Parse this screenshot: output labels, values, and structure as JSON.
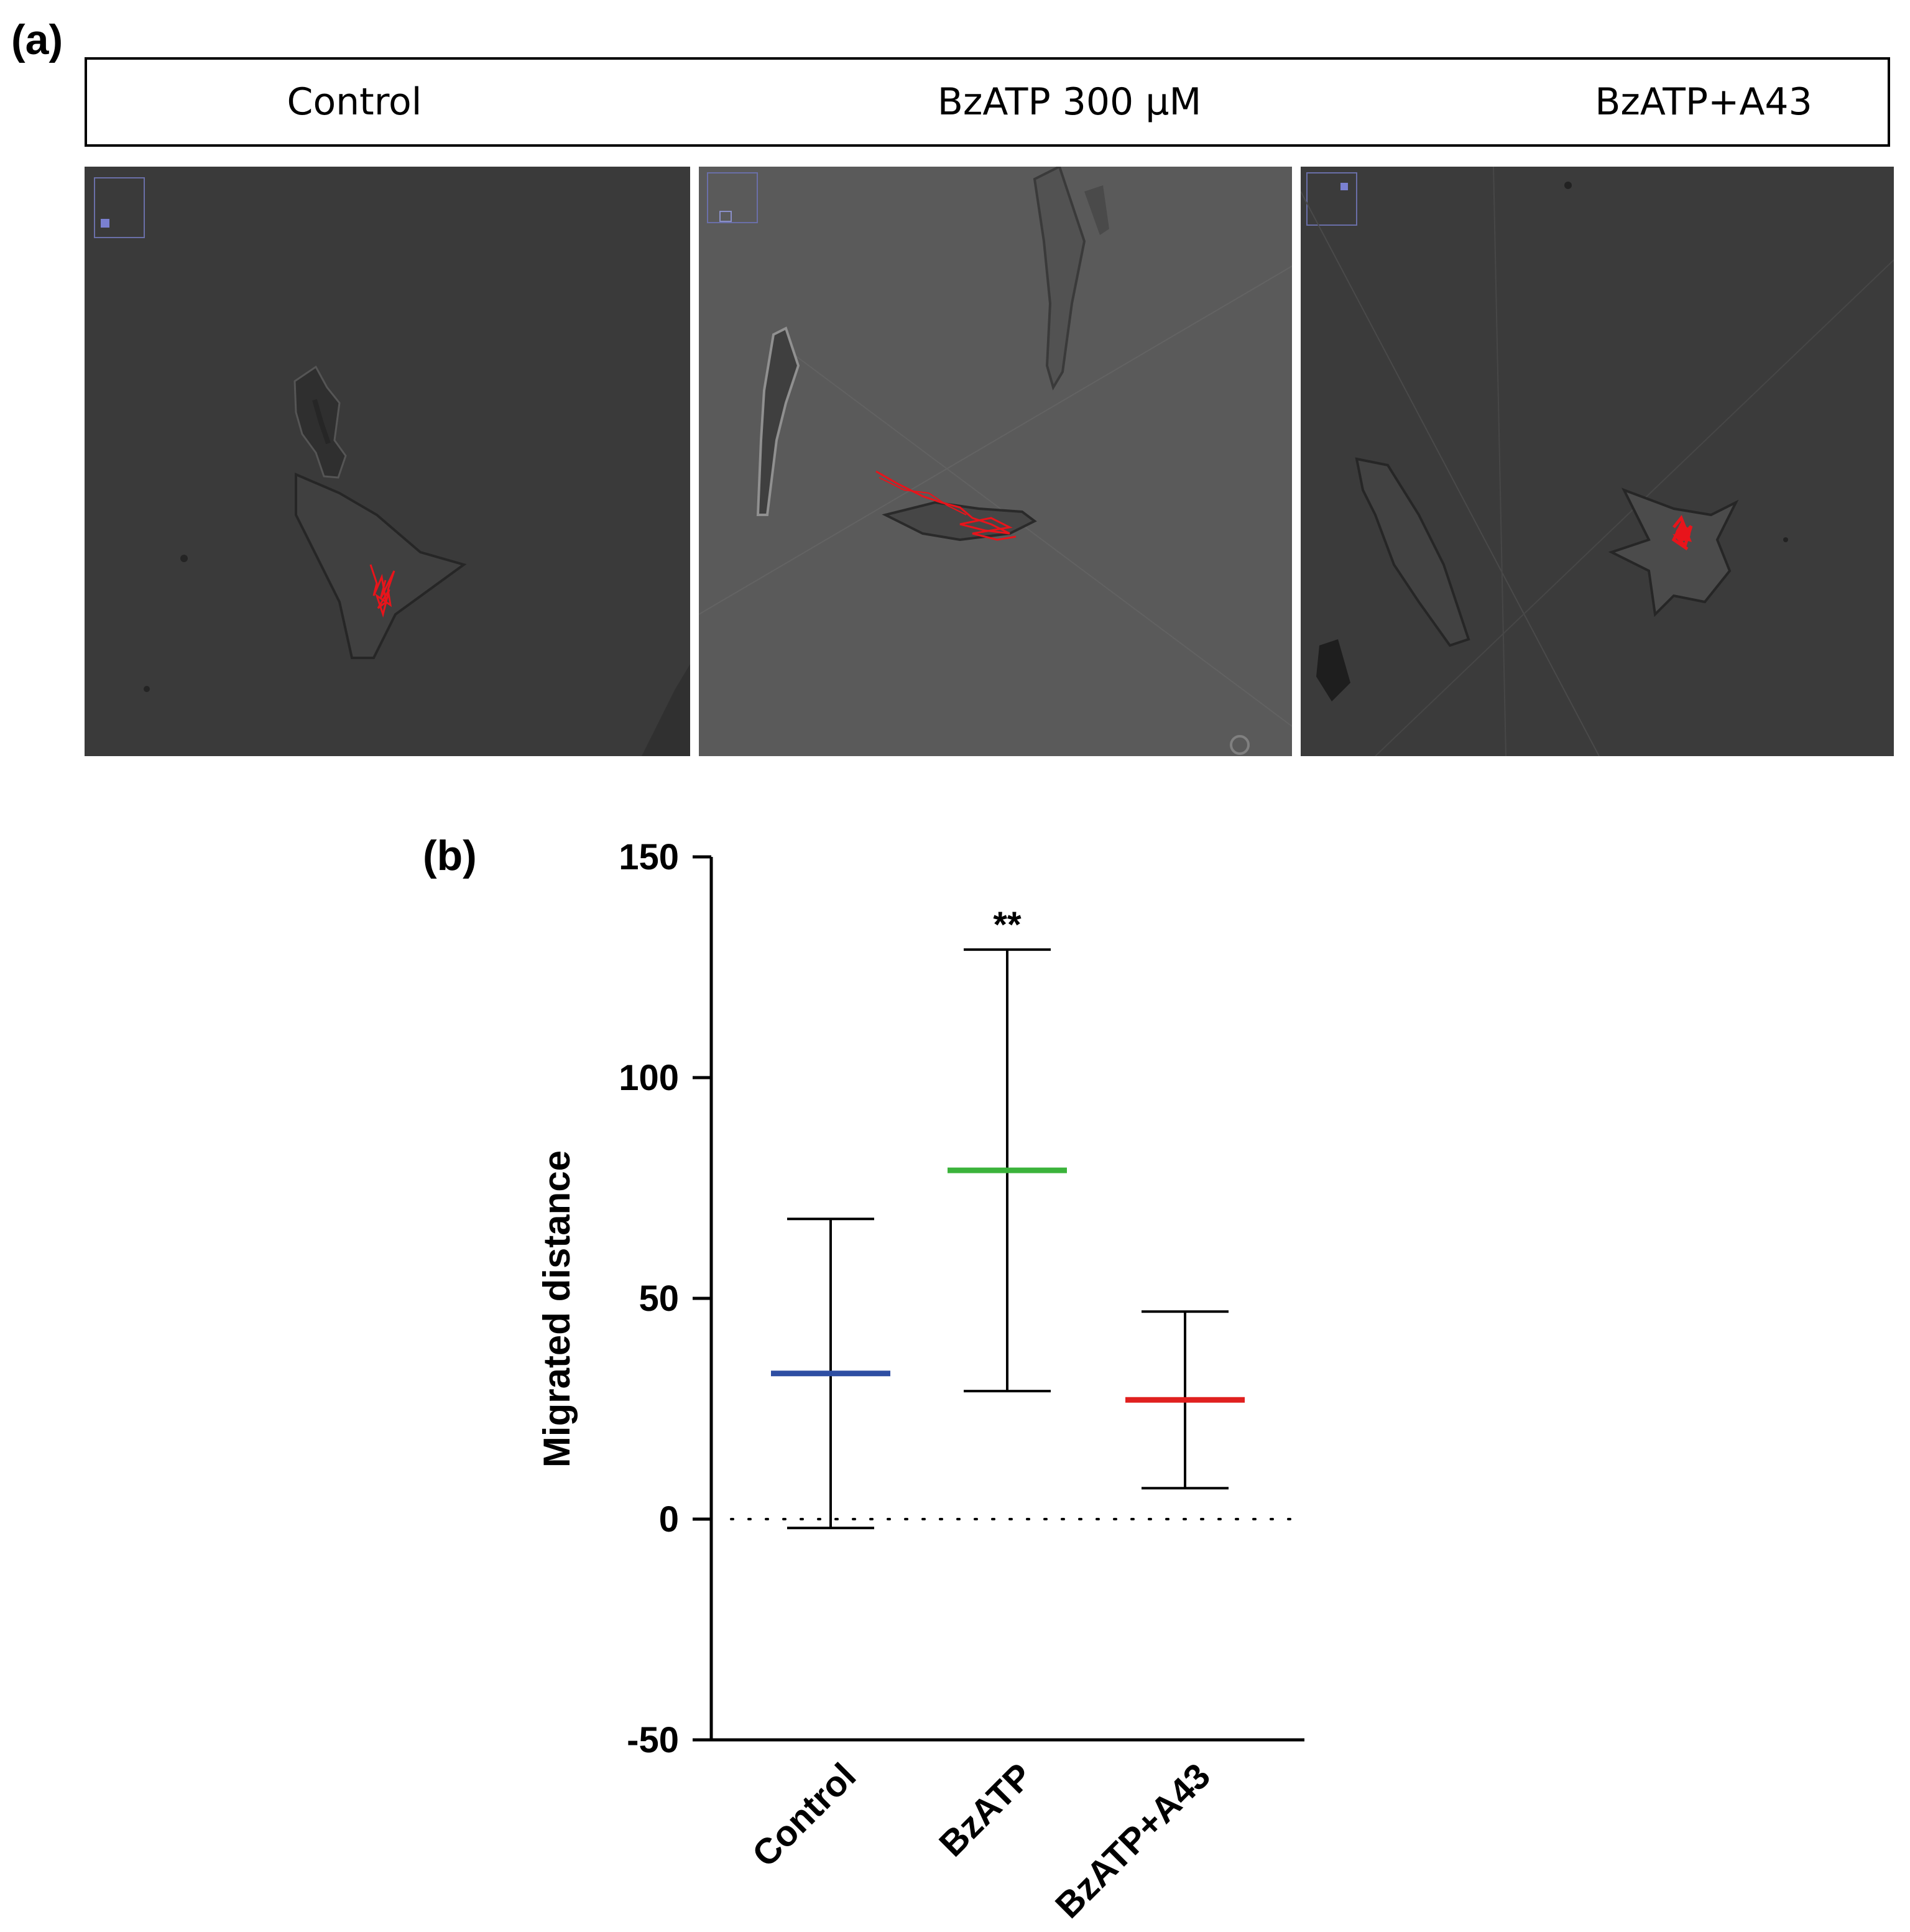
{
  "panel_a": {
    "label": "(a)",
    "columns": [
      "Control",
      "BzATP 300 μM",
      "BzATP+A43"
    ],
    "image_background_colors": [
      "#3a3a3a",
      "#5a5a5a",
      "#3b3b3b"
    ],
    "track_color": "#e8141b"
  },
  "panel_b": {
    "label": "(b)"
  },
  "chart_data": {
    "type": "scatter",
    "subtype": "mean-with-error-bars",
    "title": "",
    "xlabel": "",
    "ylabel": "Migrated distance",
    "categories": [
      "Control",
      "BzATP",
      "BzATP+A43"
    ],
    "means": [
      33,
      79,
      27
    ],
    "error_low": [
      -2,
      29,
      7
    ],
    "error_high": [
      68,
      129,
      47
    ],
    "mean_colors": [
      "#2e4ea3",
      "#3bb33b",
      "#e0201f"
    ],
    "ylim": [
      -50,
      150
    ],
    "yticks": [
      -50,
      0,
      50,
      100,
      150
    ],
    "reference_line": {
      "y": 0,
      "style": "dotted"
    },
    "annotations": [
      {
        "category": "BzATP",
        "text": "**"
      }
    ],
    "grid": false,
    "legend": "none"
  }
}
